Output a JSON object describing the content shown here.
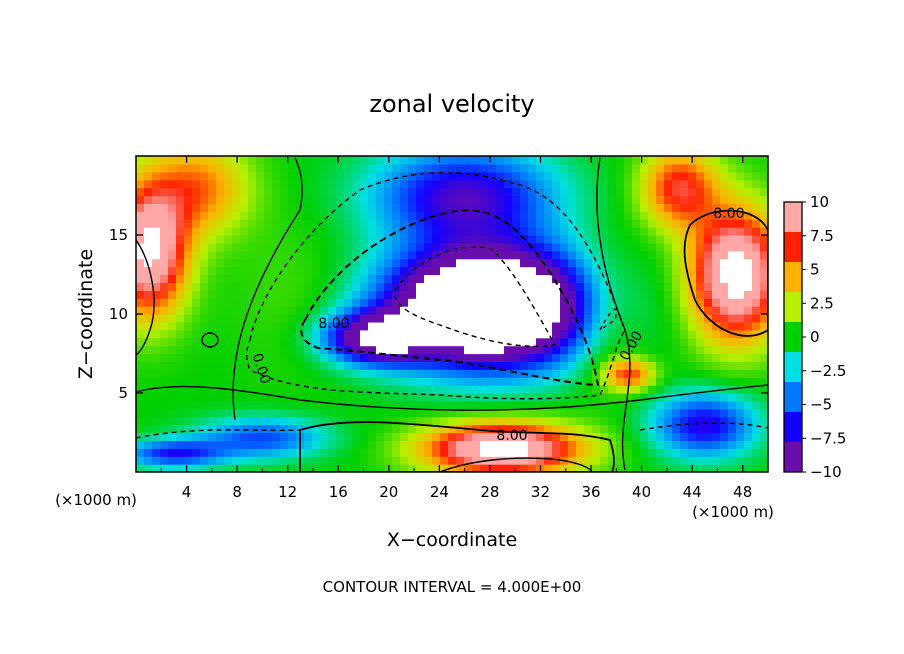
{
  "chart_data": {
    "type": "heatmap",
    "title": "zonal velocity",
    "xlabel": "X−coordinate",
    "ylabel": "Z−coordinate",
    "x_unit": "(×1000 m)",
    "x_unit_right": "(×1000 m)",
    "xlim": [
      0,
      50
    ],
    "ylim": [
      0,
      20
    ],
    "x_ticks": [
      4,
      8,
      12,
      16,
      20,
      24,
      28,
      32,
      36,
      40,
      44,
      48
    ],
    "y_ticks": [
      5,
      10,
      15
    ],
    "contour_interval_label": "CONTOUR INTERVAL = 4.000E+00",
    "contour_labels": [
      "8.00",
      "8.00",
      "0.00",
      "0.00",
      "8.00"
    ],
    "colorbar": {
      "min": -10,
      "max": 10,
      "ticks": [
        "10",
        "7.5",
        "5",
        "2.5",
        "0",
        "−2.5",
        "−5",
        "−7.5",
        "−10"
      ],
      "colors": [
        "#6a0dad",
        "#1400ff",
        "#0078ff",
        "#00e0e0",
        "#00d000",
        "#b8f000",
        "#ffb000",
        "#ff2000",
        "#ffa8a8"
      ]
    },
    "features": [
      {
        "x": 28,
        "z": 10.5,
        "sx": 7.5,
        "sz": 3.5,
        "u": -24
      },
      {
        "x": 26,
        "z": 17.5,
        "sx": 7,
        "sz": 3,
        "u": -9
      },
      {
        "x": 19,
        "z": 8.5,
        "sx": 4,
        "sz": 1.6,
        "u": -12
      },
      {
        "x": 10,
        "z": 2.2,
        "sx": 5,
        "sz": 1.3,
        "u": -6
      },
      {
        "x": 45,
        "z": 3,
        "sx": 4,
        "sz": 2,
        "u": -8
      },
      {
        "x": 3,
        "z": 1.2,
        "sx": 4,
        "sz": 0.9,
        "u": -7
      },
      {
        "x": 1,
        "z": 14,
        "sx": 3,
        "sz": 4,
        "u": 13
      },
      {
        "x": 5,
        "z": 18,
        "sx": 4,
        "sz": 3,
        "u": 6
      },
      {
        "x": 47.5,
        "z": 12.5,
        "sx": 3.5,
        "sz": 4,
        "u": 14
      },
      {
        "x": 43,
        "z": 18,
        "sx": 3,
        "sz": 2.5,
        "u": 8
      },
      {
        "x": 29,
        "z": 1.5,
        "sx": 6,
        "sz": 1.6,
        "u": 14
      },
      {
        "x": 39,
        "z": 6.2,
        "sx": 2,
        "sz": 1,
        "u": 7
      },
      {
        "x": 13,
        "z": 11,
        "sx": 5,
        "sz": 5,
        "u": 1
      },
      {
        "x": 37,
        "z": 10,
        "sx": 3,
        "sz": 4,
        "u": 3
      }
    ]
  }
}
